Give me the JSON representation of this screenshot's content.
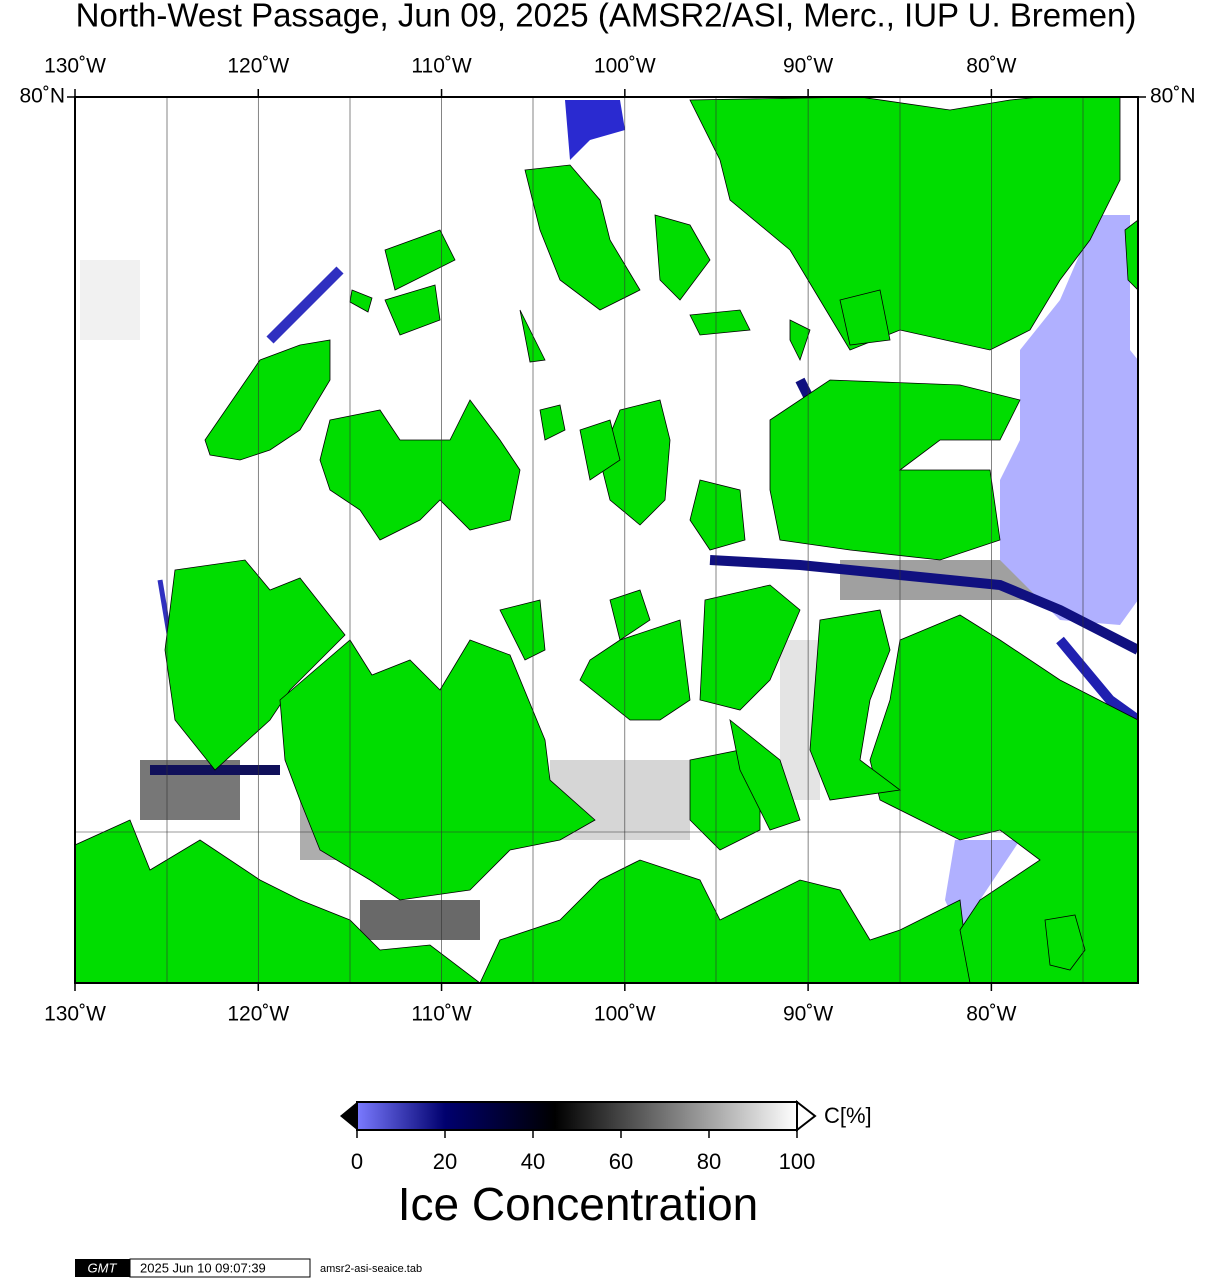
{
  "header": {
    "title": "North-West Passage, Jun 09, 2025 (AMSR2/ASI, Merc., IUP U. Bremen)"
  },
  "map": {
    "projection": "mercator",
    "xlim": [
      -130,
      -72
    ],
    "ylim": [
      67,
      80
    ],
    "xticks": [
      {
        "value": -130,
        "label": "130˚W"
      },
      {
        "value": -120,
        "label": "120˚W"
      },
      {
        "value": -110,
        "label": "110˚W"
      },
      {
        "value": -100,
        "label": "100˚W"
      },
      {
        "value": -90,
        "label": "90˚W"
      },
      {
        "value": -80,
        "label": "80˚W"
      }
    ],
    "yticks": [
      {
        "value": 80,
        "label": "80˚N"
      }
    ]
  },
  "colorbar": {
    "lim": [
      0,
      100
    ],
    "ticks": [
      0,
      20,
      40,
      60,
      80,
      100
    ],
    "unit": "C[%]",
    "title": "Ice Concentration"
  },
  "footer": {
    "logo": "GMT",
    "timestamp": "2025 Jun 10 09:07:39",
    "source": "amsr2-asi-seaice.tab"
  }
}
